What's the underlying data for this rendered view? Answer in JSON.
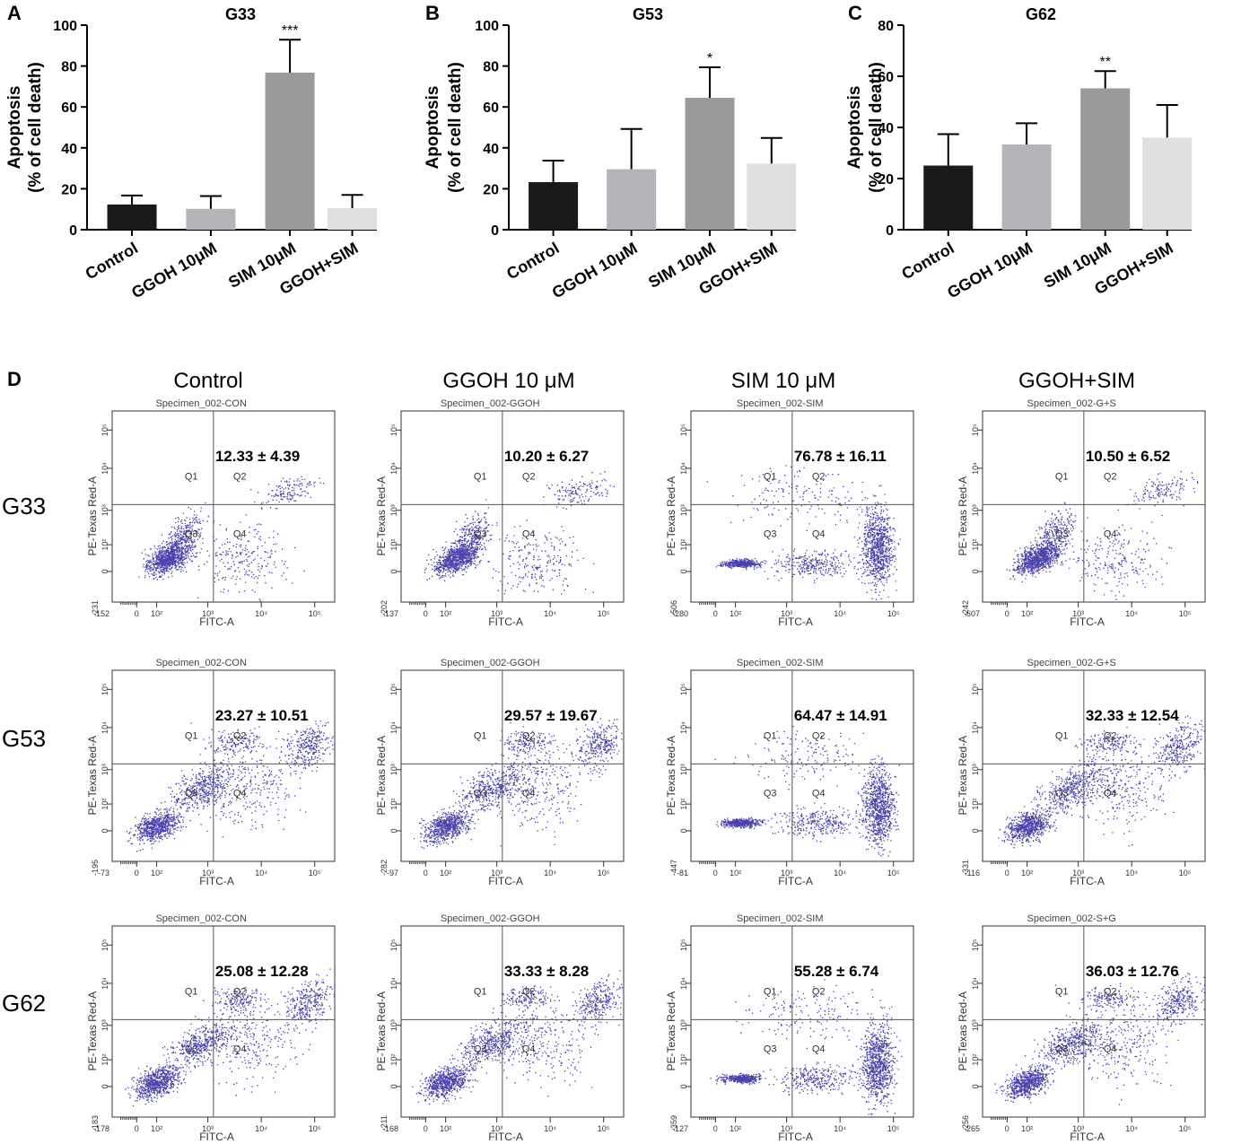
{
  "chart_data": [
    {
      "type": "bar",
      "panel": "A",
      "title": "G33",
      "ylabel_line1": "Apoptosis",
      "ylabel_line2": "(% of cell death)",
      "ylim": [
        0,
        100
      ],
      "yticks": [
        "0",
        "20",
        "40",
        "60",
        "80",
        "100"
      ],
      "categories": [
        "Control",
        "GGOH 10μM",
        "SIM 10μM",
        "GGOH+SIM"
      ],
      "values": [
        12.33,
        10.2,
        76.78,
        10.5
      ],
      "errors": [
        4.39,
        6.27,
        16.11,
        6.52
      ],
      "significance": [
        "",
        "",
        "***",
        ""
      ],
      "colors": [
        "#1a1a1a",
        "#b4b5b9",
        "#9a9a9a",
        "#e0e0e0"
      ]
    },
    {
      "type": "bar",
      "panel": "B",
      "title": "G53",
      "ylabel_line1": "Apoptosis",
      "ylabel_line2": "(% of cell death)",
      "ylim": [
        0,
        100
      ],
      "yticks": [
        "0",
        "20",
        "40",
        "60",
        "80",
        "100"
      ],
      "categories": [
        "Control",
        "GGOH 10μM",
        "SIM 10μM",
        "GGOH+SIM"
      ],
      "values": [
        23.27,
        29.57,
        64.47,
        32.33
      ],
      "errors": [
        10.51,
        19.67,
        14.91,
        12.54
      ],
      "significance": [
        "",
        "",
        "*",
        ""
      ],
      "colors": [
        "#1a1a1a",
        "#b4b5b9",
        "#9a9a9a",
        "#e0e0e0"
      ]
    },
    {
      "type": "bar",
      "panel": "C",
      "title": "G62",
      "ylabel_line1": "Apoptosis",
      "ylabel_line2": "(% of cell death)",
      "ylim": [
        0,
        80
      ],
      "yticks": [
        "0",
        "20",
        "40",
        "60",
        "80"
      ],
      "categories": [
        "Control",
        "GGOH 10μM",
        "SIM 10μM",
        "GGOH+SIM"
      ],
      "values": [
        25.08,
        33.33,
        55.28,
        36.03
      ],
      "errors": [
        12.28,
        8.28,
        6.74,
        12.76
      ],
      "significance": [
        "",
        "",
        "**",
        ""
      ],
      "colors": [
        "#1a1a1a",
        "#b4b5b9",
        "#9a9a9a",
        "#e0e0e0"
      ]
    },
    {
      "type": "scatter",
      "panel": "D",
      "column_titles": [
        "Control",
        "GGOH 10 μM",
        "SIM 10 μM",
        "GGOH+SIM"
      ],
      "row_labels": [
        "G33",
        "G53",
        "G62"
      ],
      "xlabel": "FITC-A",
      "ylabel": "PE-Texas Red-A",
      "quadrant_labels": [
        "Q1",
        "Q2",
        "Q3",
        "Q4"
      ],
      "point_color": "#2a1e9c",
      "plots": [
        {
          "row": 0,
          "col": 0,
          "specimen": "Specimen_002-CON",
          "annotation": "12.33 ± 4.39",
          "xmin": "-152",
          "ymin": "-231",
          "profile": "control"
        },
        {
          "row": 0,
          "col": 1,
          "specimen": "Specimen_002-GGOH",
          "annotation": "10.20 ± 6.27",
          "xmin": "-137",
          "ymin": "-202",
          "profile": "control"
        },
        {
          "row": 0,
          "col": 2,
          "specimen": "Specimen_002-SIM",
          "annotation": "76.78 ± 16.11",
          "xmin": "-280",
          "ymin": "-506",
          "profile": "sim"
        },
        {
          "row": 0,
          "col": 3,
          "specimen": "Specimen_002-G+S",
          "annotation": "10.50 ± 6.52",
          "xmin": "-607",
          "ymin": "-242",
          "profile": "control"
        },
        {
          "row": 1,
          "col": 0,
          "specimen": "Specimen_002-CON",
          "annotation": "23.27 ± 10.51",
          "xmin": "-73",
          "ymin": "-195",
          "profile": "diagonal"
        },
        {
          "row": 1,
          "col": 1,
          "specimen": "Specimen_002-GGOH",
          "annotation": "29.57 ± 19.67",
          "xmin": "-97",
          "ymin": "-282",
          "profile": "diagonal"
        },
        {
          "row": 1,
          "col": 2,
          "specimen": "Specimen_002-SIM",
          "annotation": "64.47 ± 14.91",
          "xmin": "-81",
          "ymin": "-447",
          "profile": "sim"
        },
        {
          "row": 1,
          "col": 3,
          "specimen": "Specimen_002-G+S",
          "annotation": "32.33 ± 12.54",
          "xmin": "-116",
          "ymin": "-331",
          "profile": "diagonal"
        },
        {
          "row": 2,
          "col": 0,
          "specimen": "Specimen_002-CON",
          "annotation": "25.08 ± 12.28",
          "xmin": "-178",
          "ymin": "-183",
          "profile": "diagonal"
        },
        {
          "row": 2,
          "col": 1,
          "specimen": "Specimen_002-GGOH",
          "annotation": "33.33 ± 8.28",
          "xmin": "-168",
          "ymin": "-211",
          "profile": "diagonal"
        },
        {
          "row": 2,
          "col": 2,
          "specimen": "Specimen_002-SIM",
          "annotation": "55.28 ± 6.74",
          "xmin": "-127",
          "ymin": "-359",
          "profile": "sim"
        },
        {
          "row": 2,
          "col": 3,
          "specimen": "Specimen_002-S+G",
          "annotation": "36.03 ± 12.76",
          "xmin": "-265",
          "ymin": "-256",
          "profile": "diagonal"
        }
      ]
    }
  ]
}
